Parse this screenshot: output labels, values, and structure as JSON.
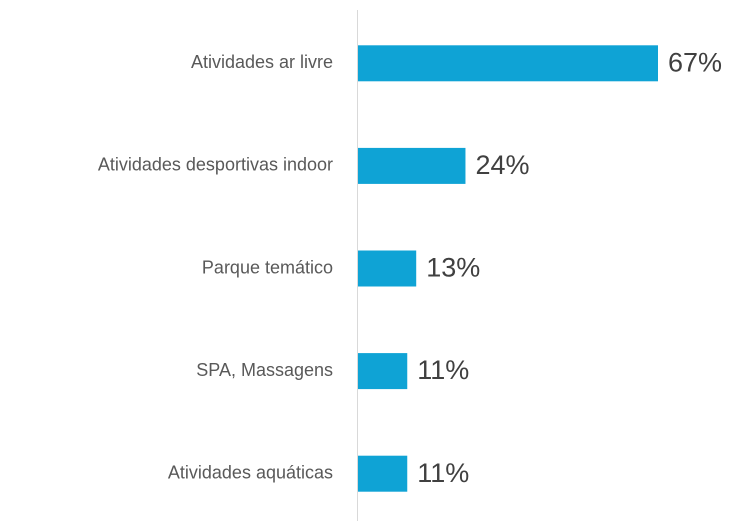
{
  "chart_data": {
    "type": "bar",
    "orientation": "horizontal",
    "categories": [
      "Atividades ar livre",
      "Atividades desportivas indoor",
      "Parque temático",
      "SPA, Massagens",
      "Atividades aquáticas"
    ],
    "values": [
      67,
      24,
      13,
      11,
      11
    ],
    "value_labels": [
      "67%",
      "24%",
      "13%",
      "11%",
      "11%"
    ],
    "color": "#0fa3d5"
  }
}
